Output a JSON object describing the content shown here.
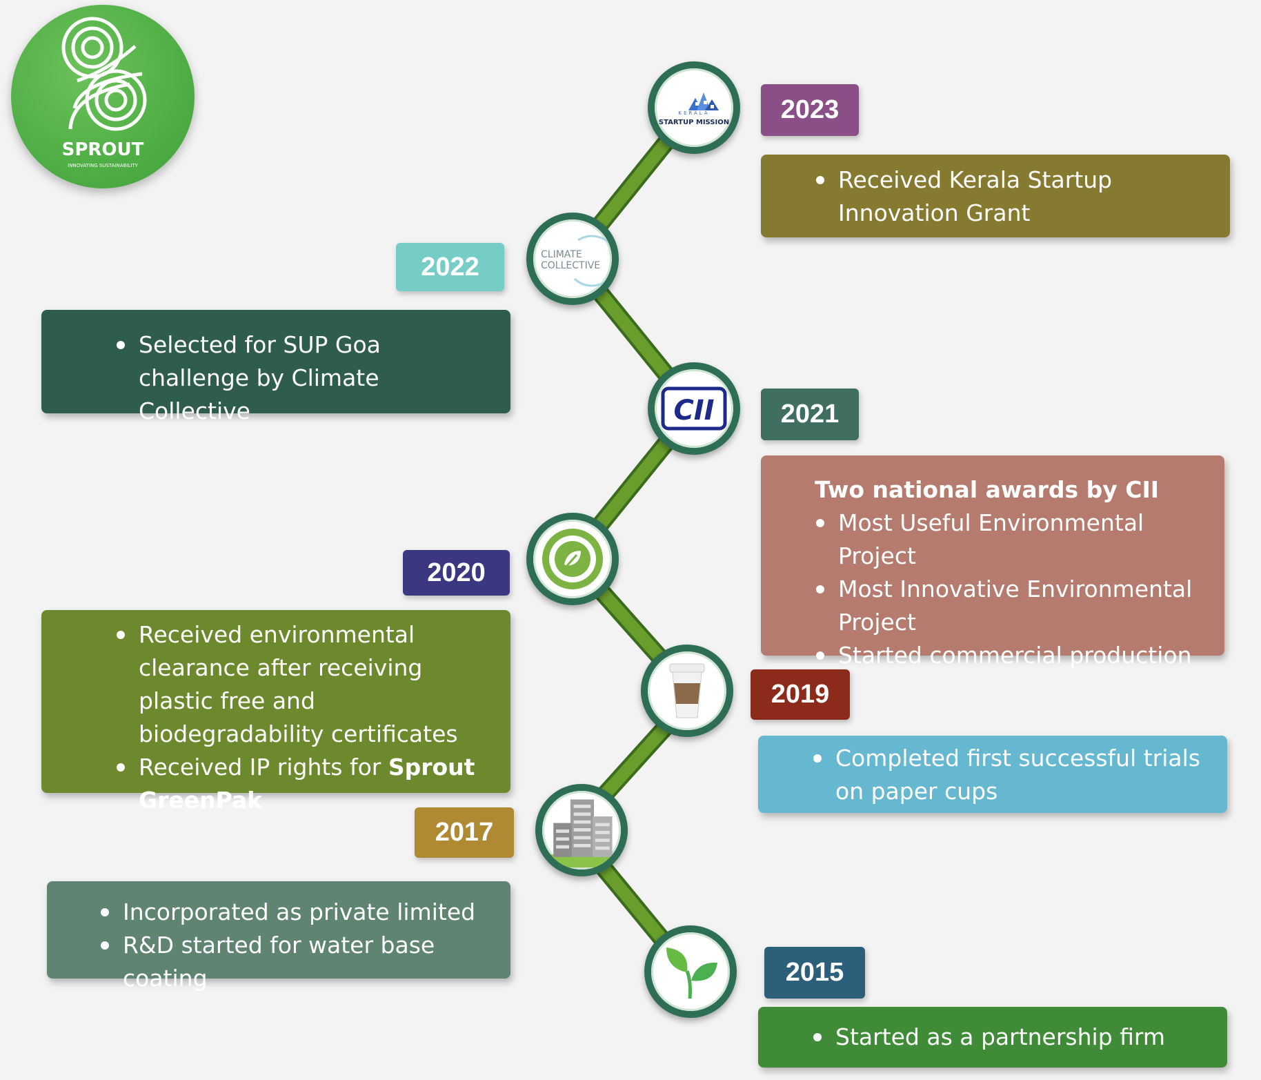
{
  "logo": {
    "name": "SPROUT",
    "tagline": "INNOVATING SUSTAINABILITY",
    "color": "#4fae45"
  },
  "timeline": [
    {
      "year": "2023",
      "year_color": "#8a4f86",
      "box_color": "#857a30",
      "icon": "kerala-startup-mission-logo",
      "icon_caption": "STARTUP MISSION",
      "icon_small": "KERALA",
      "items": [
        "Received Kerala Startup Innovation Grant"
      ]
    },
    {
      "year": "2022",
      "year_color": "#75cdc6",
      "box_color": "#2f5d4d",
      "icon": "climate-collective-logo",
      "icon_caption_line1": "CLIMATE",
      "icon_caption_line2": "COLLECTIVE",
      "items": [
        "Selected for SUP Goa challenge by Climate Collective"
      ]
    },
    {
      "year": "2021",
      "year_color": "#406e60",
      "box_color": "#b57b6e",
      "icon": "cii-logo",
      "icon_caption": "CII",
      "heading": "Two national awards by CII",
      "items": [
        "Most Useful Environmental Project",
        "Most Innovative Environmental Project",
        "Started commercial production"
      ]
    },
    {
      "year": "2020",
      "year_color": "#3b3780",
      "box_color": "#6c8a2d",
      "icon": "biodegradable-badge-icon",
      "items": [
        " Received environmental clearance after receiving plastic free and biodegradability certificates"
      ],
      "ip_prefix": "Received IP rights for ",
      "ip_bold": "Sprout GreenPak"
    },
    {
      "year": "2019",
      "year_color": "#8c2b1b",
      "box_color": "#66b8d1",
      "icon": "paper-cup-icon",
      "items": [
        "Completed first successful trials on paper cups"
      ]
    },
    {
      "year": "2017",
      "year_color": "#b08a33",
      "box_color": "#5f8471",
      "icon": "office-building-icon",
      "items": [
        "Incorporated as private limited",
        "R&D started for water base coating"
      ]
    },
    {
      "year": "2015",
      "year_color": "#2b5f7a",
      "box_color": "#3f8b37",
      "icon": "sprout-leaves-icon",
      "items": [
        "Started as a partnership firm"
      ]
    }
  ]
}
